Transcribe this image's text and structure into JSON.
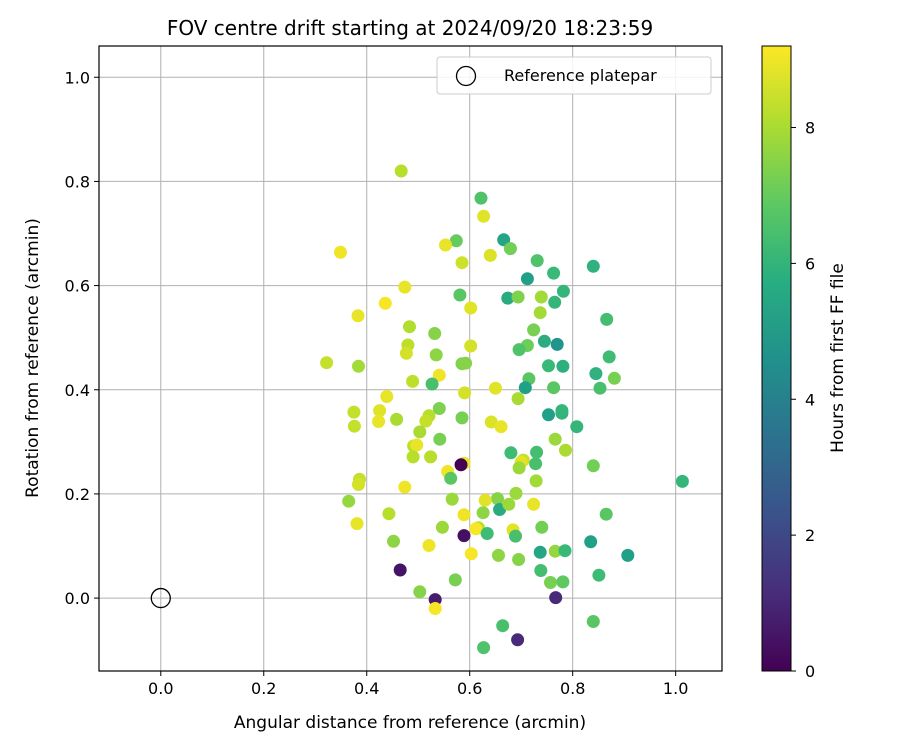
{
  "chart_data": {
    "type": "scatter",
    "title": "FOV centre drift starting at 2024/09/20 18:23:59",
    "xlabel": "Angular distance from reference (arcmin)",
    "ylabel": "Rotation from reference (arcmin)",
    "xlim": [
      -0.12,
      1.09
    ],
    "ylim": [
      -0.14,
      1.06
    ],
    "xticks": [
      0.0,
      0.2,
      0.4,
      0.6,
      0.8,
      1.0
    ],
    "xtick_labels": [
      "0.0",
      "0.2",
      "0.4",
      "0.6",
      "0.8",
      "1.0"
    ],
    "yticks": [
      0.0,
      0.2,
      0.4,
      0.6,
      0.8,
      1.0
    ],
    "ytick_labels": [
      "0.0",
      "0.2",
      "0.4",
      "0.6",
      "0.8",
      "1.0"
    ],
    "grid": true,
    "legend": {
      "position": "top-right",
      "entries": [
        "Reference platepar"
      ]
    },
    "reference": {
      "x": 0.0,
      "y": 0.0,
      "label": "Reference platepar"
    },
    "colorbar": {
      "label": "Hours from first FF file",
      "colormap": "viridis",
      "range": [
        0,
        9.2
      ],
      "ticks": [
        0,
        2,
        4,
        6,
        8
      ],
      "tick_labels": [
        "0",
        "2",
        "4",
        "6",
        "8"
      ]
    },
    "point_fields": [
      "x",
      "y",
      "hours"
    ],
    "points": [
      [
        0.467,
        0.82,
        8.2
      ],
      [
        0.622,
        0.768,
        6.6
      ],
      [
        0.627,
        0.733,
        8.8
      ],
      [
        0.349,
        0.664,
        9.0
      ],
      [
        0.574,
        0.686,
        7.0
      ],
      [
        0.553,
        0.678,
        8.9
      ],
      [
        0.666,
        0.688,
        5.4
      ],
      [
        0.679,
        0.671,
        7.2
      ],
      [
        0.64,
        0.658,
        8.7
      ],
      [
        0.585,
        0.644,
        8.5
      ],
      [
        0.731,
        0.648,
        6.6
      ],
      [
        0.763,
        0.624,
        6.2
      ],
      [
        0.712,
        0.613,
        5.2
      ],
      [
        0.84,
        0.637,
        5.9
      ],
      [
        0.474,
        0.597,
        8.9
      ],
      [
        0.782,
        0.589,
        6.1
      ],
      [
        0.436,
        0.566,
        9.1
      ],
      [
        0.581,
        0.582,
        6.8
      ],
      [
        0.674,
        0.576,
        5.6
      ],
      [
        0.694,
        0.578,
        7.4
      ],
      [
        0.739,
        0.578,
        7.9
      ],
      [
        0.765,
        0.568,
        6.1
      ],
      [
        0.602,
        0.557,
        8.8
      ],
      [
        0.383,
        0.542,
        8.9
      ],
      [
        0.737,
        0.548,
        7.9
      ],
      [
        0.866,
        0.535,
        6.4
      ],
      [
        0.483,
        0.521,
        8.1
      ],
      [
        0.724,
        0.515,
        7.3
      ],
      [
        0.532,
        0.508,
        7.5
      ],
      [
        0.745,
        0.493,
        5.7
      ],
      [
        0.77,
        0.487,
        4.8
      ],
      [
        0.712,
        0.485,
        7.1
      ],
      [
        0.48,
        0.486,
        8.3
      ],
      [
        0.602,
        0.484,
        8.6
      ],
      [
        0.696,
        0.477,
        6.6
      ],
      [
        0.535,
        0.467,
        7.6
      ],
      [
        0.477,
        0.47,
        8.6
      ],
      [
        0.871,
        0.463,
        6.3
      ],
      [
        0.322,
        0.452,
        8.4
      ],
      [
        0.585,
        0.45,
        7.4
      ],
      [
        0.592,
        0.451,
        7.5
      ],
      [
        0.753,
        0.446,
        6.2
      ],
      [
        0.781,
        0.445,
        5.8
      ],
      [
        0.384,
        0.445,
        7.9
      ],
      [
        0.845,
        0.431,
        5.9
      ],
      [
        0.715,
        0.421,
        6.8
      ],
      [
        0.881,
        0.422,
        7.3
      ],
      [
        0.541,
        0.428,
        9.0
      ],
      [
        0.489,
        0.416,
        8.3
      ],
      [
        0.527,
        0.411,
        6.5
      ],
      [
        0.763,
        0.404,
        6.8
      ],
      [
        0.853,
        0.403,
        6.5
      ],
      [
        0.708,
        0.404,
        5.2
      ],
      [
        0.65,
        0.403,
        8.8
      ],
      [
        0.59,
        0.394,
        8.6
      ],
      [
        0.439,
        0.387,
        8.9
      ],
      [
        0.694,
        0.383,
        8.0
      ],
      [
        0.541,
        0.364,
        7.4
      ],
      [
        0.375,
        0.357,
        8.4
      ],
      [
        0.425,
        0.36,
        8.8
      ],
      [
        0.779,
        0.36,
        6.1
      ],
      [
        0.779,
        0.355,
        6.0
      ],
      [
        0.753,
        0.352,
        5.2
      ],
      [
        0.521,
        0.35,
        8.2
      ],
      [
        0.585,
        0.346,
        7.3
      ],
      [
        0.458,
        0.343,
        8.0
      ],
      [
        0.423,
        0.339,
        8.9
      ],
      [
        0.515,
        0.34,
        8.4
      ],
      [
        0.642,
        0.338,
        8.7
      ],
      [
        0.376,
        0.33,
        8.4
      ],
      [
        0.661,
        0.329,
        8.9
      ],
      [
        0.808,
        0.329,
        6.1
      ],
      [
        0.503,
        0.319,
        8.0
      ],
      [
        0.542,
        0.305,
        7.3
      ],
      [
        0.766,
        0.305,
        7.8
      ],
      [
        0.491,
        0.292,
        8.3
      ],
      [
        0.497,
        0.294,
        8.9
      ],
      [
        0.786,
        0.284,
        8.0
      ],
      [
        0.68,
        0.279,
        6.3
      ],
      [
        0.73,
        0.28,
        6.4
      ],
      [
        0.524,
        0.271,
        8.2
      ],
      [
        0.49,
        0.271,
        8.2
      ],
      [
        0.704,
        0.265,
        8.4
      ],
      [
        0.7,
        0.261,
        8.8
      ],
      [
        0.589,
        0.259,
        8.9
      ],
      [
        0.583,
        0.256,
        0.0
      ],
      [
        0.84,
        0.254,
        7.2
      ],
      [
        0.728,
        0.258,
        6.5
      ],
      [
        0.696,
        0.25,
        7.8
      ],
      [
        0.557,
        0.243,
        9.0
      ],
      [
        0.563,
        0.23,
        6.8
      ],
      [
        0.386,
        0.228,
        8.4
      ],
      [
        0.729,
        0.225,
        7.9
      ],
      [
        1.013,
        0.224,
        6.1
      ],
      [
        0.384,
        0.218,
        8.6
      ],
      [
        0.474,
        0.213,
        9.0
      ],
      [
        0.365,
        0.186,
        7.7
      ],
      [
        0.566,
        0.19,
        7.8
      ],
      [
        0.654,
        0.191,
        7.5
      ],
      [
        0.63,
        0.188,
        8.8
      ],
      [
        0.69,
        0.201,
        7.8
      ],
      [
        0.724,
        0.18,
        8.9
      ],
      [
        0.658,
        0.17,
        5.6
      ],
      [
        0.676,
        0.18,
        7.8
      ],
      [
        0.443,
        0.162,
        8.2
      ],
      [
        0.626,
        0.164,
        7.6
      ],
      [
        0.589,
        0.16,
        9.0
      ],
      [
        0.865,
        0.161,
        6.8
      ],
      [
        0.381,
        0.143,
        8.9
      ],
      [
        0.617,
        0.135,
        8.2
      ],
      [
        0.547,
        0.136,
        7.8
      ],
      [
        0.74,
        0.136,
        7.2
      ],
      [
        0.612,
        0.133,
        9.1
      ],
      [
        0.684,
        0.131,
        8.8
      ],
      [
        0.634,
        0.124,
        6.3
      ],
      [
        0.689,
        0.119,
        6.5
      ],
      [
        0.589,
        0.12,
        0.4
      ],
      [
        0.452,
        0.109,
        7.6
      ],
      [
        0.835,
        0.108,
        5.2
      ],
      [
        0.521,
        0.101,
        9.0
      ],
      [
        0.737,
        0.088,
        5.4
      ],
      [
        0.766,
        0.09,
        7.7
      ],
      [
        0.785,
        0.091,
        6.2
      ],
      [
        0.907,
        0.082,
        5.2
      ],
      [
        0.603,
        0.085,
        9.1
      ],
      [
        0.656,
        0.082,
        7.6
      ],
      [
        0.695,
        0.074,
        7.5
      ],
      [
        0.738,
        0.053,
        6.4
      ],
      [
        0.465,
        0.054,
        0.5
      ],
      [
        0.851,
        0.044,
        6.3
      ],
      [
        0.572,
        0.035,
        7.3
      ],
      [
        0.757,
        0.03,
        7.3
      ],
      [
        0.781,
        0.031,
        6.9
      ],
      [
        0.503,
        0.012,
        7.5
      ],
      [
        0.533,
        -0.003,
        0.7
      ],
      [
        0.767,
        0.001,
        1.1
      ],
      [
        0.533,
        -0.02,
        9.1
      ],
      [
        0.84,
        -0.045,
        6.8
      ],
      [
        0.664,
        -0.053,
        6.5
      ],
      [
        0.693,
        -0.08,
        1.1
      ],
      [
        0.627,
        -0.095,
        6.6
      ]
    ]
  }
}
